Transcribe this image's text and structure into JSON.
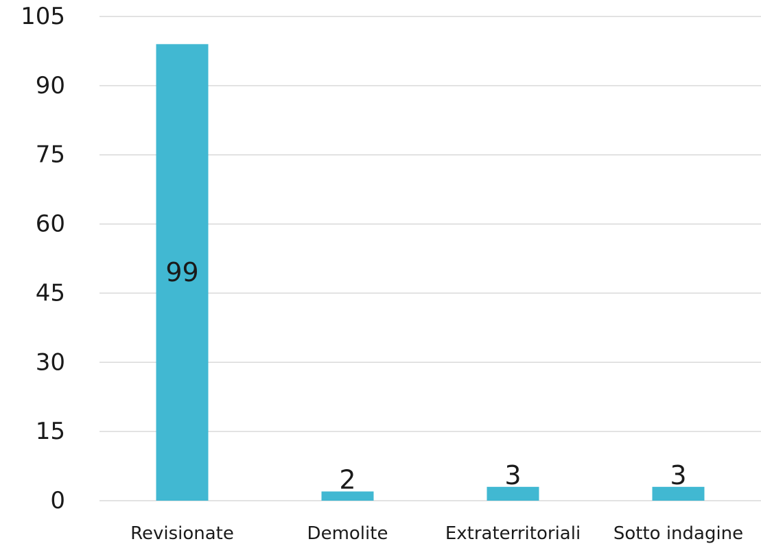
{
  "chart_data": {
    "type": "bar",
    "categories": [
      "Revisionate",
      "Demolite",
      "Extraterritoriali",
      "Sotto indagine"
    ],
    "values": [
      99,
      2,
      3,
      3
    ],
    "data_labels": [
      "99",
      "2",
      "3",
      "3"
    ],
    "ylim": [
      0,
      105
    ],
    "yticks": [
      0,
      15,
      30,
      45,
      60,
      75,
      90,
      105
    ],
    "ytick_labels": [
      "0",
      "15",
      "30",
      "45",
      "60",
      "75",
      "90",
      "105"
    ],
    "grid": true,
    "legend": "none",
    "title": "",
    "xlabel": "",
    "ylabel": "",
    "colors": {
      "bar": "#41B8D2",
      "grid": "#D9D9D9",
      "text": "#1A1A1A"
    }
  }
}
